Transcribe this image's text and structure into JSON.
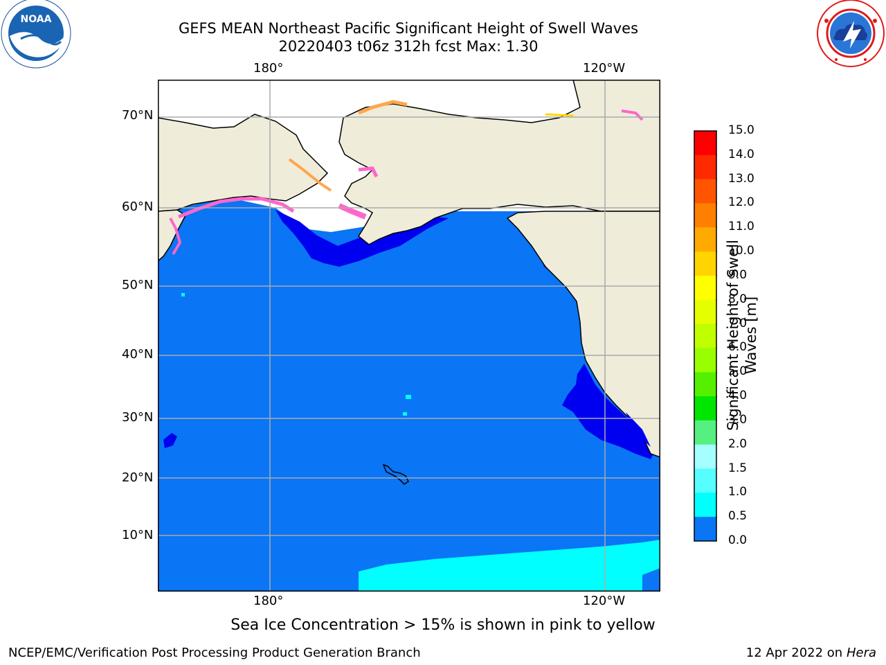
{
  "header": {
    "title_line1": "GEFS MEAN Northeast Pacific Significant Height of Swell Waves",
    "title_line2": "20220403 t06z 312h fcst   Max: 1.30"
  },
  "logos": {
    "left": "noaa-logo",
    "right": "nws-logo"
  },
  "map": {
    "lon_labels": [
      "180°",
      "120°W"
    ],
    "lat_labels": [
      "70°N",
      "60°N",
      "50°N",
      "40°N",
      "30°N",
      "20°N",
      "10°N"
    ],
    "colors": {
      "ocean_main": "#0a75f5",
      "ocean_low": "#0000f0",
      "ocean_mid": "#00ffff",
      "land": "#efecda",
      "ice_white": "#ffffff",
      "ice_pink": "#ff66cc",
      "ice_orange": "#ffa64d",
      "ice_yellow": "#ffd700",
      "grid": "#aaaaaa"
    }
  },
  "colorbar": {
    "title_line1": "Significant Height of Swell",
    "title_line2": "Waves [m]",
    "ticks": [
      "15.0",
      "14.0",
      "13.0",
      "12.0",
      "11.0",
      "10.0",
      "9.0",
      "8.0",
      "7.0",
      "6.0",
      "5.0",
      "4.0",
      "3.0",
      "2.0",
      "1.5",
      "1.0",
      "0.5",
      "0.0"
    ],
    "colors": [
      "#ff0000",
      "#ff2a00",
      "#ff5500",
      "#ff8000",
      "#ffaa00",
      "#ffd400",
      "#ffff00",
      "#e5ff00",
      "#bfff00",
      "#99ff00",
      "#55f000",
      "#00e600",
      "#55f080",
      "#a6ffff",
      "#55ffff",
      "#00ffff",
      "#0a75f5",
      "#0000f0"
    ]
  },
  "footer": {
    "note": "Sea Ice Concentration > 15% is shown in pink to yellow",
    "credit": "NCEP/EMC/Verification Post Processing Product Generation Branch",
    "date_prefix": "12 Apr 2022 on ",
    "date_machine": "Hera"
  }
}
